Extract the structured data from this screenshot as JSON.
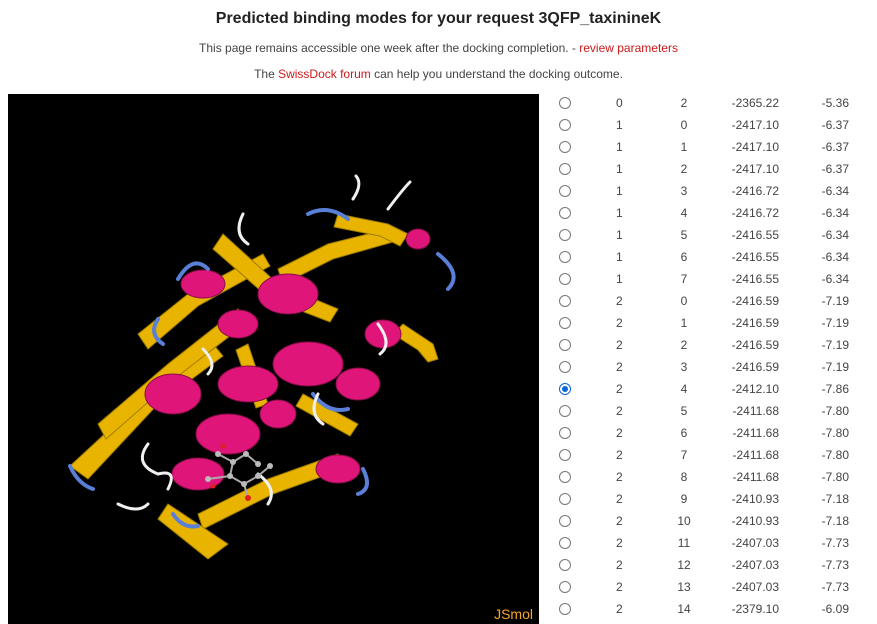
{
  "page": {
    "title": "Predicted binding modes for your request 3QFP_taxinineK",
    "subtitle_prefix": "This page remains accessible one week after the docking completion. - ",
    "review_link": "review parameters",
    "forum_prefix": "The ",
    "forum_link": "SwissDock forum",
    "forum_suffix": " can help you understand the docking outcome."
  },
  "viewer": {
    "label": "JSmol",
    "colors": {
      "background": "#000000",
      "helix": "#e0157a",
      "sheet": "#e8b400",
      "turn": "#5a7fd6",
      "coil": "#ffffff",
      "label": "#f5a623"
    }
  },
  "results": [
    {
      "cluster": "0",
      "element": "2",
      "fullfitness": "-2365.22",
      "dg": "-5.36",
      "selected": false
    },
    {
      "cluster": "1",
      "element": "0",
      "fullfitness": "-2417.10",
      "dg": "-6.37",
      "selected": false
    },
    {
      "cluster": "1",
      "element": "1",
      "fullfitness": "-2417.10",
      "dg": "-6.37",
      "selected": false
    },
    {
      "cluster": "1",
      "element": "2",
      "fullfitness": "-2417.10",
      "dg": "-6.37",
      "selected": false
    },
    {
      "cluster": "1",
      "element": "3",
      "fullfitness": "-2416.72",
      "dg": "-6.34",
      "selected": false
    },
    {
      "cluster": "1",
      "element": "4",
      "fullfitness": "-2416.72",
      "dg": "-6.34",
      "selected": false
    },
    {
      "cluster": "1",
      "element": "5",
      "fullfitness": "-2416.55",
      "dg": "-6.34",
      "selected": false
    },
    {
      "cluster": "1",
      "element": "6",
      "fullfitness": "-2416.55",
      "dg": "-6.34",
      "selected": false
    },
    {
      "cluster": "1",
      "element": "7",
      "fullfitness": "-2416.55",
      "dg": "-6.34",
      "selected": false
    },
    {
      "cluster": "2",
      "element": "0",
      "fullfitness": "-2416.59",
      "dg": "-7.19",
      "selected": false
    },
    {
      "cluster": "2",
      "element": "1",
      "fullfitness": "-2416.59",
      "dg": "-7.19",
      "selected": false
    },
    {
      "cluster": "2",
      "element": "2",
      "fullfitness": "-2416.59",
      "dg": "-7.19",
      "selected": false
    },
    {
      "cluster": "2",
      "element": "3",
      "fullfitness": "-2416.59",
      "dg": "-7.19",
      "selected": false
    },
    {
      "cluster": "2",
      "element": "4",
      "fullfitness": "-2412.10",
      "dg": "-7.86",
      "selected": true
    },
    {
      "cluster": "2",
      "element": "5",
      "fullfitness": "-2411.68",
      "dg": "-7.80",
      "selected": false
    },
    {
      "cluster": "2",
      "element": "6",
      "fullfitness": "-2411.68",
      "dg": "-7.80",
      "selected": false
    },
    {
      "cluster": "2",
      "element": "7",
      "fullfitness": "-2411.68",
      "dg": "-7.80",
      "selected": false
    },
    {
      "cluster": "2",
      "element": "8",
      "fullfitness": "-2411.68",
      "dg": "-7.80",
      "selected": false
    },
    {
      "cluster": "2",
      "element": "9",
      "fullfitness": "-2410.93",
      "dg": "-7.18",
      "selected": false
    },
    {
      "cluster": "2",
      "element": "10",
      "fullfitness": "-2410.93",
      "dg": "-7.18",
      "selected": false
    },
    {
      "cluster": "2",
      "element": "11",
      "fullfitness": "-2407.03",
      "dg": "-7.73",
      "selected": false
    },
    {
      "cluster": "2",
      "element": "12",
      "fullfitness": "-2407.03",
      "dg": "-7.73",
      "selected": false
    },
    {
      "cluster": "2",
      "element": "13",
      "fullfitness": "-2407.03",
      "dg": "-7.73",
      "selected": false
    },
    {
      "cluster": "2",
      "element": "14",
      "fullfitness": "-2379.10",
      "dg": "-6.09",
      "selected": false
    }
  ]
}
